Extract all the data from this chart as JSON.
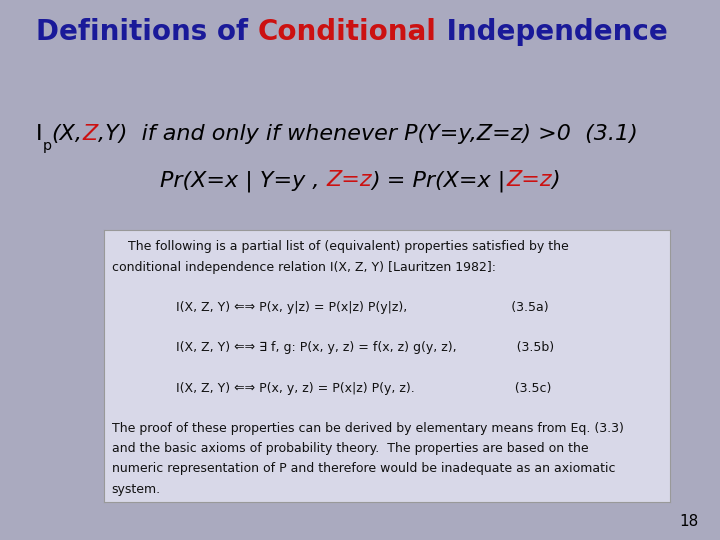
{
  "bg_color": "#aaaabf",
  "title_blue": "#1a1a99",
  "title_red": "#cc1111",
  "box_bg": "#d8d8e8",
  "box_border": "#999999",
  "slide_number": "18",
  "title_texts": [
    "Definitions of ",
    "Conditional",
    " Independence"
  ],
  "title_colors": [
    "#1a1a99",
    "#cc1111",
    "#1a1a99"
  ],
  "eq_fontsize": 16,
  "title_fontsize": 20,
  "body_fontsize": 9.0,
  "box_text_lines": [
    "    The following is a partial list of (equivalent) properties satisfied by the",
    "conditional independence relation I(X, Z, Y) [Lauritzen 1982]:",
    "",
    "                I(X, Z, Y) ⇐⇒ P(x, y|z) = P(x|z) P(y|z),                          (3.5a)",
    "",
    "                I(X, Z, Y) ⇐⇒ ∃ f, g: P(x, y, z) = f(x, z) g(y, z),               (3.5b)",
    "",
    "                I(X, Z, Y) ⇐⇒ P(x, y, z) = P(x|z) P(y, z).                         (3.5c)",
    "",
    "The proof of these properties can be derived by elementary means from Eq. (3.3)",
    "and the basic axioms of probability theory.  The properties are based on the",
    "numeric representation of P and therefore would be inadequate as an axiomatic",
    "system."
  ]
}
